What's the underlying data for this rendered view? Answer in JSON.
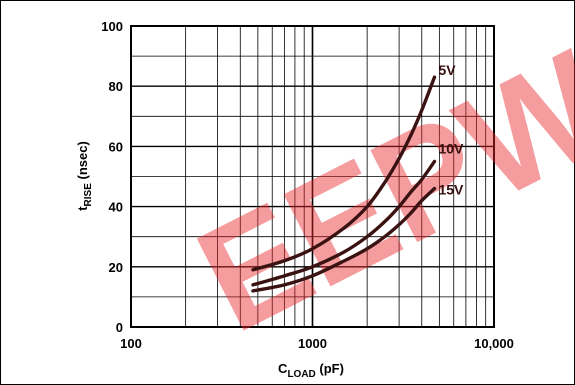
{
  "chart_data": {
    "type": "line",
    "title": "",
    "xlabel": "CLOAD (pF)",
    "xlabel_main": "C",
    "xlabel_sub": "LOAD",
    "xlabel_unit": " (pF)",
    "ylabel_main": "t",
    "ylabel_sub": "RISE",
    "ylabel_unit": " (nsec)",
    "x_scale": "log",
    "xlim": [
      100,
      10000
    ],
    "ylim": [
      0,
      100
    ],
    "x_ticks": [
      100,
      1000,
      10000
    ],
    "x_tick_labels": [
      "100",
      "1000",
      "10,000"
    ],
    "y_ticks": [
      0,
      20,
      40,
      60,
      80,
      100
    ],
    "y_tick_labels": [
      "0",
      "20",
      "40",
      "60",
      "80",
      "100"
    ],
    "grid": true,
    "series": [
      {
        "name": "5V",
        "x": [
          470,
          700,
          1000,
          1500,
          2000,
          2500,
          3000,
          3500,
          4000,
          4700
        ],
        "y": [
          19,
          22,
          26,
          33,
          40,
          48,
          56,
          64,
          72,
          83
        ]
      },
      {
        "name": "10V",
        "x": [
          470,
          700,
          1000,
          1500,
          2000,
          2500,
          3000,
          3500,
          4000,
          4700
        ],
        "y": [
          14,
          17,
          20,
          25,
          30,
          35,
          40,
          45,
          49,
          55
        ]
      },
      {
        "name": "15V",
        "x": [
          470,
          700,
          1000,
          1500,
          2000,
          2500,
          3000,
          3500,
          4000,
          4700
        ],
        "y": [
          12,
          14,
          17,
          22,
          26,
          30,
          34,
          38,
          42,
          46
        ]
      }
    ],
    "colors": {
      "curve": "#3a1212",
      "grid": "#000000",
      "watermark": "#e8242b"
    }
  },
  "watermark": {
    "text": "EEPW"
  }
}
